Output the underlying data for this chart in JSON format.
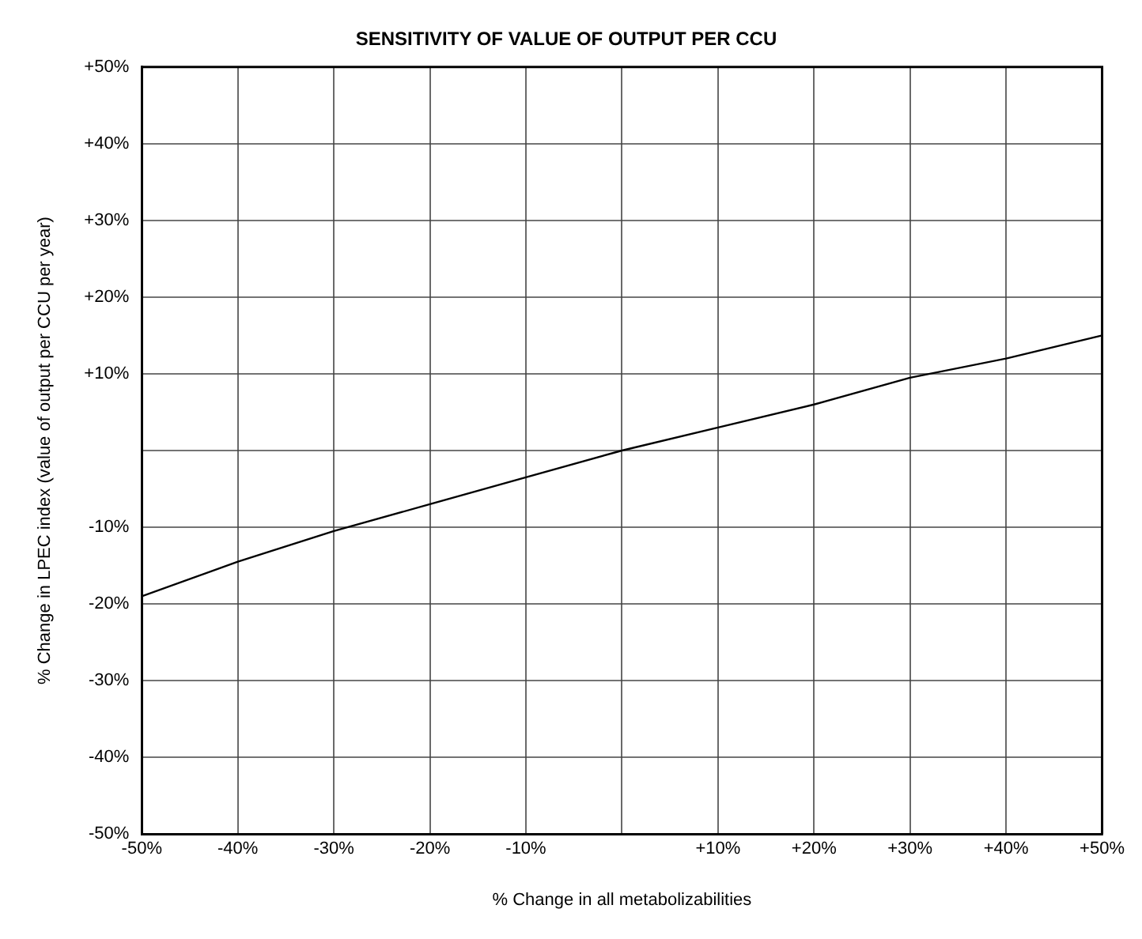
{
  "chart_data": {
    "type": "line",
    "title": "SENSITIVITY OF VALUE OF OUTPUT PER CCU",
    "xlabel": "% Change in all metabolizabilities",
    "ylabel": "% Change in LPEC index (value of output per CCU per year)",
    "x": [
      -50,
      -40,
      -30,
      -20,
      -10,
      0,
      10,
      20,
      30,
      40,
      50
    ],
    "series": [
      {
        "color": "#000000",
        "values": [
          -19,
          -14.5,
          -10.5,
          -7,
          -3.5,
          0,
          3,
          6,
          9.5,
          12,
          15
        ]
      }
    ],
    "xlim": [
      -50,
      50
    ],
    "ylim": [
      -50,
      50
    ],
    "xticks": [
      {
        "value": -50,
        "label": "-50%"
      },
      {
        "value": -40,
        "label": "-40%"
      },
      {
        "value": -30,
        "label": "-30%"
      },
      {
        "value": -20,
        "label": "-20%"
      },
      {
        "value": -10,
        "label": "-10%"
      },
      {
        "value": 0,
        "label": null
      },
      {
        "value": 10,
        "label": "+10%"
      },
      {
        "value": 20,
        "label": "+20%"
      },
      {
        "value": 30,
        "label": "+30%"
      },
      {
        "value": 40,
        "label": "+40%"
      },
      {
        "value": 50,
        "label": "+50%"
      }
    ],
    "yticks": [
      {
        "value": -50,
        "label": "-50%"
      },
      {
        "value": -40,
        "label": "-40%"
      },
      {
        "value": -30,
        "label": "-30%"
      },
      {
        "value": -20,
        "label": "-20%"
      },
      {
        "value": -10,
        "label": "-10%"
      },
      {
        "value": 0,
        "label": null
      },
      {
        "value": 10,
        "label": "+10%"
      },
      {
        "value": 20,
        "label": "+20%"
      },
      {
        "value": 30,
        "label": "+30%"
      },
      {
        "value": 40,
        "label": "+40%"
      },
      {
        "value": 50,
        "label": "+50%"
      }
    ],
    "grid": true,
    "marker": "none",
    "line_style": "solid",
    "legend": false
  }
}
